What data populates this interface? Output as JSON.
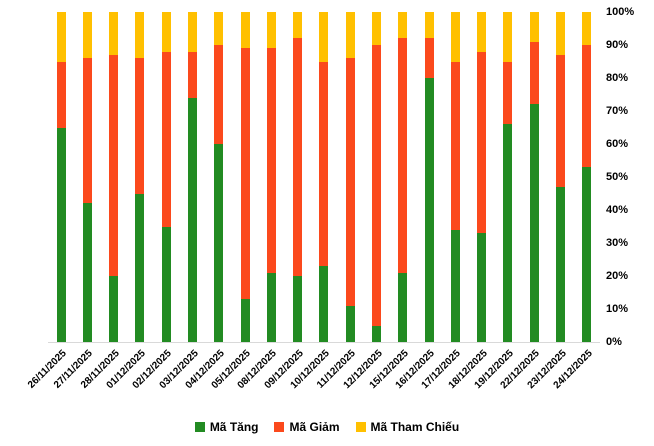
{
  "chart_data": {
    "type": "bar",
    "stacked": true,
    "orientation": "vertical",
    "title": "",
    "xlabel": "",
    "ylabel": "",
    "ylim": [
      0,
      100
    ],
    "grid": false,
    "y_axis_side": "right",
    "legend_position": "bottom",
    "y_ticks": [
      "0%",
      "10%",
      "20%",
      "30%",
      "40%",
      "50%",
      "60%",
      "70%",
      "80%",
      "90%",
      "100%"
    ],
    "categories": [
      "26/11/2025",
      "27/11/2025",
      "28/11/2025",
      "01/12/2025",
      "02/12/2025",
      "03/12/2025",
      "04/12/2025",
      "05/12/2025",
      "08/12/2025",
      "09/12/2025",
      "10/12/2025",
      "11/12/2025",
      "12/12/2025",
      "15/12/2025",
      "16/12/2025",
      "17/12/2025",
      "18/12/2025",
      "19/12/2025",
      "22/12/2025",
      "23/12/2025",
      "24/12/2025"
    ],
    "series": [
      {
        "name": "Mã Tăng",
        "color": "#228B22",
        "values": [
          65,
          42,
          20,
          45,
          35,
          74,
          60,
          13,
          21,
          20,
          23,
          11,
          5,
          21,
          80,
          34,
          33,
          66,
          72,
          47,
          53
        ]
      },
      {
        "name": "Mã Giảm",
        "color": "#FB491C",
        "values": [
          20,
          44,
          67,
          41,
          53,
          14,
          30,
          76,
          68,
          72,
          62,
          75,
          85,
          71,
          12,
          51,
          55,
          19,
          19,
          40,
          37
        ]
      },
      {
        "name": "Mã Tham Chiếu",
        "color": "#FFC000",
        "values": [
          15,
          14,
          13,
          14,
          12,
          12,
          10,
          11,
          11,
          8,
          15,
          14,
          10,
          8,
          8,
          15,
          12,
          15,
          9,
          13,
          10
        ]
      }
    ]
  }
}
